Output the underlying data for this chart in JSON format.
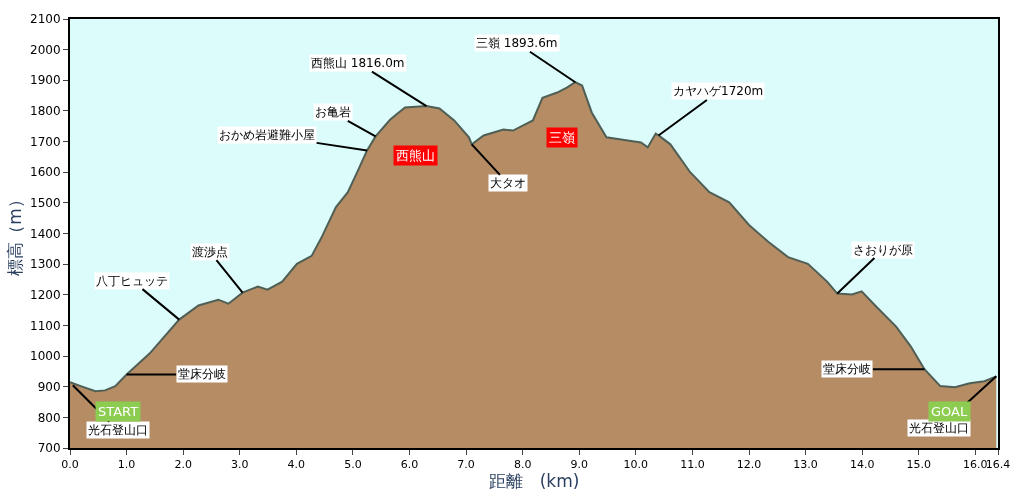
{
  "chart_data": {
    "type": "area",
    "xlabel": "距離　(km)",
    "ylabel": "標高（m）",
    "x": [
      0.0,
      0.19,
      0.45,
      0.62,
      0.8,
      1.0,
      1.41,
      1.93,
      2.27,
      2.62,
      2.8,
      3.05,
      3.32,
      3.49,
      3.75,
      4.01,
      4.27,
      4.44,
      4.7,
      4.91,
      5.09,
      5.25,
      5.4,
      5.66,
      5.92,
      6.3,
      6.53,
      6.79,
      7.05,
      7.1,
      7.31,
      7.66,
      7.83,
      8.18,
      8.35,
      8.61,
      8.78,
      8.93,
      9.05,
      9.22,
      9.48,
      9.74,
      10.09,
      10.21,
      10.35,
      10.4,
      10.61,
      10.96,
      11.3,
      11.65,
      12.0,
      12.34,
      12.69,
      13.04,
      13.38,
      13.56,
      13.82,
      13.99,
      14.25,
      14.6,
      14.86,
      15.1,
      15.38,
      15.64,
      15.9,
      16.16,
      16.37
    ],
    "series": [
      {
        "color": "#b58c64",
        "values": [
          915,
          902,
          885,
          888,
          902,
          940,
          1009,
          1119,
          1165,
          1184,
          1171,
          1207,
          1227,
          1217,
          1243,
          1301,
          1327,
          1385,
          1486,
          1535,
          1606,
          1671,
          1717,
          1772,
          1811,
          1816,
          1808,
          1769,
          1714,
          1691,
          1720,
          1739,
          1736,
          1769,
          1843,
          1860,
          1876,
          1893.6,
          1883,
          1795,
          1714,
          1707,
          1697,
          1681,
          1726,
          1720,
          1691,
          1600,
          1535,
          1502,
          1428,
          1373,
          1323,
          1301,
          1243,
          1204,
          1201,
          1211,
          1161,
          1096,
          1031,
          957,
          902,
          898,
          911,
          918,
          934
        ]
      }
    ],
    "xlim": [
      0,
      16.4
    ],
    "ylim": [
      700,
      2100
    ],
    "xticks": [
      {
        "value": 0,
        "label": "0.0"
      },
      {
        "value": 1,
        "label": "1.0"
      },
      {
        "value": 2,
        "label": "2.0"
      },
      {
        "value": 3,
        "label": "3.0"
      },
      {
        "value": 4,
        "label": "4.0"
      },
      {
        "value": 5,
        "label": "5.0"
      },
      {
        "value": 6,
        "label": "6.0"
      },
      {
        "value": 7,
        "label": "7.0"
      },
      {
        "value": 8,
        "label": "8.0"
      },
      {
        "value": 9,
        "label": "9.0"
      },
      {
        "value": 10,
        "label": "10.0"
      },
      {
        "value": 11,
        "label": "11.0"
      },
      {
        "value": 12,
        "label": "12.0"
      },
      {
        "value": 13,
        "label": "13.0"
      },
      {
        "value": 14,
        "label": "14.0"
      },
      {
        "value": 15,
        "label": "15.0"
      },
      {
        "value": 16,
        "label": "16.0"
      },
      16.4
    ],
    "yticks": [
      700,
      800,
      900,
      1000,
      1100,
      1200,
      1300,
      1400,
      1500,
      1600,
      1700,
      1800,
      1900,
      2000,
      2100
    ],
    "annotations": [
      {
        "text": "光石登山口",
        "x": 0.05,
        "y": 905
      },
      {
        "text": "堂床分岐",
        "x": 1.0,
        "y": 940
      },
      {
        "text": "八丁ヒュッテ",
        "x": 1.93,
        "y": 1119
      },
      {
        "text": "渡渉点",
        "x": 3.05,
        "y": 1207
      },
      {
        "text": "おかめ岩避難小屋",
        "x": 5.25,
        "y": 1671
      },
      {
        "text": "お亀岩",
        "x": 5.4,
        "y": 1717
      },
      {
        "text": "西熊山 1816.0m",
        "x": 6.3,
        "y": 1816
      },
      {
        "text": "大タオ",
        "x": 7.1,
        "y": 1691
      },
      {
        "text": "三嶺 1893.6m",
        "x": 8.93,
        "y": 1893.6
      },
      {
        "text": "カヤハゲ1720m",
        "x": 10.4,
        "y": 1720
      },
      {
        "text": "さおりが原",
        "x": 13.56,
        "y": 1204
      },
      {
        "text": "堂床分岐",
        "x": 15.1,
        "y": 957
      },
      {
        "text": "光石登山口",
        "x": 16.37,
        "y": 934
      },
      "西熊山",
      "三嶺",
      "START",
      "GOAL"
    ],
    "grid": false,
    "legend": false
  }
}
